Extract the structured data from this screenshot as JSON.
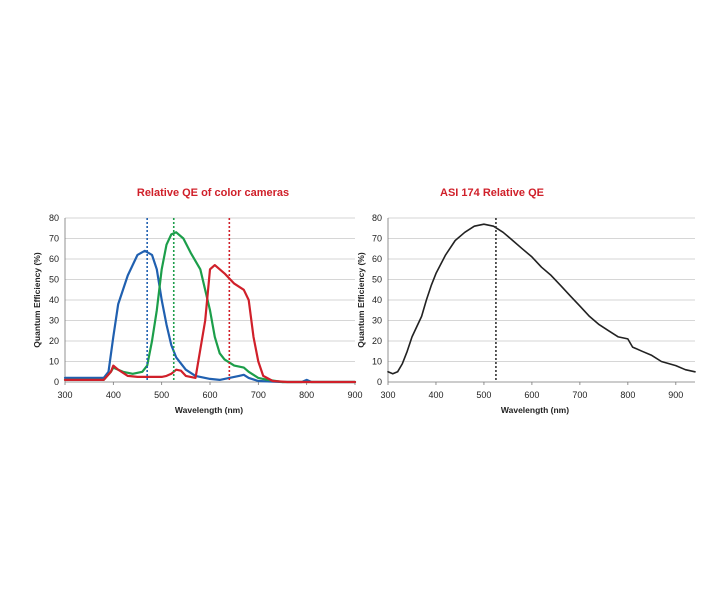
{
  "chart_data": [
    {
      "type": "line",
      "title": "Relative QE of color cameras",
      "title_color": "#d0202a",
      "xlabel": "Wavelength (nm)",
      "ylabel": "Quantum Efficiency (%)",
      "xlim": [
        300,
        900
      ],
      "ylim": [
        0,
        80
      ],
      "xticks": [
        300,
        400,
        500,
        600,
        700,
        800,
        900
      ],
      "yticks": [
        0,
        10,
        20,
        30,
        40,
        50,
        60,
        70,
        80
      ],
      "grid": true,
      "series": [
        {
          "name": "Blue",
          "color": "#2060b0",
          "points": [
            [
              300,
              2
            ],
            [
              380,
              2
            ],
            [
              390,
              5
            ],
            [
              400,
              22
            ],
            [
              410,
              38
            ],
            [
              430,
              52
            ],
            [
              450,
              62
            ],
            [
              465,
              64
            ],
            [
              480,
              62
            ],
            [
              490,
              55
            ],
            [
              500,
              40
            ],
            [
              510,
              28
            ],
            [
              520,
              18
            ],
            [
              530,
              12
            ],
            [
              550,
              6
            ],
            [
              570,
              3
            ],
            [
              600,
              1.5
            ],
            [
              620,
              1
            ],
            [
              640,
              2
            ],
            [
              660,
              3
            ],
            [
              670,
              3.5
            ],
            [
              680,
              2
            ],
            [
              700,
              0.5
            ],
            [
              750,
              0
            ],
            [
              790,
              0
            ],
            [
              800,
              1
            ],
            [
              810,
              0
            ],
            [
              900,
              0
            ]
          ]
        },
        {
          "name": "Green",
          "color": "#1c9e4a",
          "points": [
            [
              300,
              1
            ],
            [
              380,
              1
            ],
            [
              395,
              5
            ],
            [
              400,
              7
            ],
            [
              410,
              6
            ],
            [
              420,
              5
            ],
            [
              440,
              4
            ],
            [
              460,
              5
            ],
            [
              470,
              8
            ],
            [
              480,
              20
            ],
            [
              490,
              35
            ],
            [
              500,
              55
            ],
            [
              510,
              67
            ],
            [
              520,
              72
            ],
            [
              530,
              73
            ],
            [
              545,
              70
            ],
            [
              560,
              63
            ],
            [
              580,
              55
            ],
            [
              600,
              35
            ],
            [
              610,
              22
            ],
            [
              620,
              14
            ],
            [
              630,
              11
            ],
            [
              650,
              8
            ],
            [
              670,
              7
            ],
            [
              680,
              5
            ],
            [
              700,
              2
            ],
            [
              720,
              1
            ],
            [
              750,
              0
            ],
            [
              900,
              0
            ]
          ]
        },
        {
          "name": "Red",
          "color": "#d0202a",
          "points": [
            [
              300,
              1
            ],
            [
              380,
              1
            ],
            [
              395,
              5
            ],
            [
              400,
              8
            ],
            [
              410,
              6
            ],
            [
              430,
              3
            ],
            [
              450,
              2.5
            ],
            [
              480,
              2.5
            ],
            [
              500,
              2.5
            ],
            [
              510,
              3
            ],
            [
              520,
              4
            ],
            [
              530,
              6
            ],
            [
              540,
              5.5
            ],
            [
              550,
              3
            ],
            [
              570,
              2
            ],
            [
              590,
              30
            ],
            [
              600,
              55
            ],
            [
              610,
              57
            ],
            [
              630,
              53
            ],
            [
              650,
              48
            ],
            [
              670,
              45
            ],
            [
              680,
              40
            ],
            [
              690,
              22
            ],
            [
              700,
              10
            ],
            [
              710,
              3
            ],
            [
              730,
              0.5
            ],
            [
              760,
              0
            ],
            [
              900,
              0
            ]
          ]
        }
      ],
      "reference_lines": [
        {
          "x": 470,
          "color": "#2060b0"
        },
        {
          "x": 525,
          "color": "#1c9e4a"
        },
        {
          "x": 640,
          "color": "#d0202a"
        }
      ]
    },
    {
      "type": "line",
      "title": "ASI 174 Relative QE",
      "title_color": "#d0202a",
      "xlabel": "Wavelength (nm)",
      "ylabel": "Quantum Efficiency (%)",
      "xlim": [
        300,
        940
      ],
      "ylim": [
        0,
        80
      ],
      "xticks": [
        300,
        400,
        500,
        600,
        700,
        800,
        900
      ],
      "yticks": [
        0,
        10,
        20,
        30,
        40,
        50,
        60,
        70,
        80
      ],
      "grid": true,
      "series": [
        {
          "name": "ASI 174",
          "color": "#222222",
          "points": [
            [
              300,
              5
            ],
            [
              310,
              4
            ],
            [
              320,
              5
            ],
            [
              330,
              9
            ],
            [
              340,
              15
            ],
            [
              350,
              22
            ],
            [
              360,
              27
            ],
            [
              370,
              32
            ],
            [
              380,
              40
            ],
            [
              390,
              47
            ],
            [
              400,
              53
            ],
            [
              420,
              62
            ],
            [
              440,
              69
            ],
            [
              460,
              73
            ],
            [
              480,
              76
            ],
            [
              500,
              77
            ],
            [
              520,
              76
            ],
            [
              540,
              73
            ],
            [
              560,
              69
            ],
            [
              580,
              65
            ],
            [
              600,
              61
            ],
            [
              620,
              56
            ],
            [
              640,
              52
            ],
            [
              660,
              47
            ],
            [
              680,
              42
            ],
            [
              700,
              37
            ],
            [
              720,
              32
            ],
            [
              740,
              28
            ],
            [
              760,
              25
            ],
            [
              780,
              22
            ],
            [
              800,
              21
            ],
            [
              810,
              17
            ],
            [
              830,
              15
            ],
            [
              850,
              13
            ],
            [
              870,
              10
            ],
            [
              900,
              8
            ],
            [
              920,
              6
            ],
            [
              940,
              5
            ]
          ]
        }
      ],
      "reference_lines": [
        {
          "x": 525,
          "color": "#333333"
        }
      ]
    }
  ]
}
